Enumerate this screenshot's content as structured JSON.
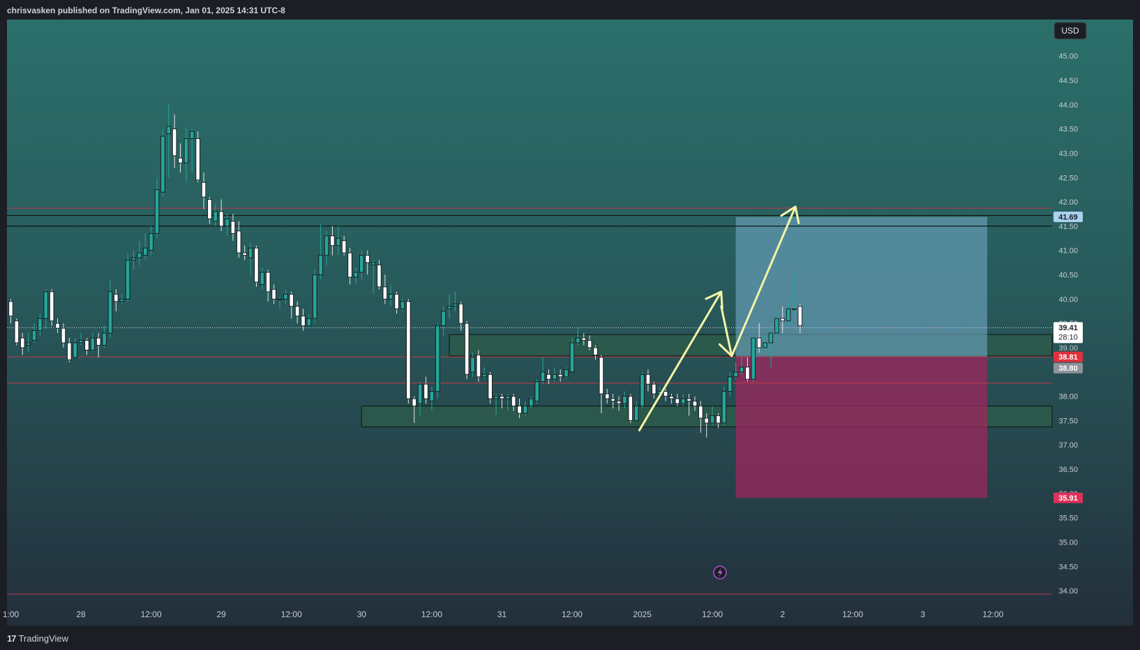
{
  "header": {
    "byline": "chrisvasken published on TradingView.com, Jan 01, 2025 14:31 UTC-8"
  },
  "footer": {
    "brand_logo": "17",
    "brand": "TradingView"
  },
  "currency_button": "USD",
  "colors": {
    "bull": "#26a69a",
    "bear": "#ffffff",
    "target_zone": "#6fa8c4",
    "stop_zone": "#a3245e",
    "support_zone": "#2d5a4a",
    "arrow": "#f5f5a8",
    "red_line": "#c0394a"
  },
  "icons": {
    "flash": "flash-icon",
    "logo": "tradingview-logo-icon"
  },
  "chart_data": {
    "type": "candlestick",
    "ylim": [
      33.8,
      45.75
    ],
    "y_ticks": [
      "45.00",
      "44.50",
      "44.00",
      "43.50",
      "43.00",
      "42.50",
      "42.00",
      "41.50",
      "41.00",
      "40.50",
      "40.00",
      "39.50",
      "39.00",
      "38.00",
      "37.50",
      "37.00",
      "36.50",
      "36.00",
      "35.50",
      "35.00",
      "34.50",
      "34.00"
    ],
    "x_ticks": [
      {
        "label": "1:00",
        "i": 0
      },
      {
        "label": "28",
        "i": 12
      },
      {
        "label": "12:00",
        "i": 24
      },
      {
        "label": "29",
        "i": 36
      },
      {
        "label": "12:00",
        "i": 48
      },
      {
        "label": "30",
        "i": 60
      },
      {
        "label": "12:00",
        "i": 72
      },
      {
        "label": "31",
        "i": 84
      },
      {
        "label": "12:00",
        "i": 96
      },
      {
        "label": "2025",
        "i": 108
      },
      {
        "label": "12:00",
        "i": 120
      },
      {
        "label": "2",
        "i": 132
      },
      {
        "label": "12:00",
        "i": 144
      },
      {
        "label": "3",
        "i": 156
      },
      {
        "label": "12:00",
        "i": 168
      }
    ],
    "price_tags": [
      {
        "value": "41.69",
        "price": 41.69,
        "bg": "#a9d2ef",
        "fg": "#1c1e26"
      },
      {
        "value": "39.41",
        "sub": "28:10",
        "price": 39.41,
        "bg": "#ffffff",
        "fg": "#1c1e26"
      },
      {
        "value": "38.81",
        "price": 38.81,
        "bg": "#e0303e",
        "fg": "#ffffff"
      },
      {
        "value": "38.80",
        "price": 38.58,
        "bg": "#8f939b",
        "fg": "#ffffff"
      },
      {
        "value": "35.91",
        "price": 35.91,
        "bg": "#e0305a",
        "fg": "#ffffff"
      }
    ],
    "levels": {
      "current_price": 39.41,
      "red_lines": [
        41.87,
        38.81,
        38.27,
        33.93
      ],
      "black_lines": [
        41.72,
        41.5
      ]
    },
    "zones": {
      "supply": {
        "from_i": 75,
        "to_i": 180,
        "top": 39.27,
        "bottom": 38.83
      },
      "support": {
        "from_i": 60,
        "to_i": 180,
        "top": 37.8,
        "bottom": 37.37
      },
      "target": {
        "from_i": 124,
        "to_i": 167,
        "top": 41.69,
        "bottom": 38.81
      },
      "stop": {
        "from_i": 124,
        "to_i": 167,
        "top": 38.81,
        "bottom": 35.91
      }
    },
    "arrows": [
      {
        "points": [
          [
            107.5,
            37.3
          ],
          [
            121.5,
            40.15
          ]
        ]
      },
      {
        "points": [
          [
            121.5,
            39.85
          ],
          [
            123.3,
            38.83
          ],
          [
            134.2,
            41.9
          ]
        ]
      }
    ],
    "candles": [
      [
        39.95,
        39.65,
        40.0,
        39.5
      ],
      [
        39.55,
        39.1,
        39.6,
        39.05
      ],
      [
        39.2,
        39.0,
        39.3,
        38.85
      ],
      [
        39.05,
        39.1,
        39.3,
        38.9
      ],
      [
        39.15,
        39.35,
        39.5,
        39.1
      ],
      [
        39.35,
        39.6,
        39.7,
        39.25
      ],
      [
        39.6,
        40.15,
        40.2,
        39.4
      ],
      [
        40.15,
        39.55,
        40.2,
        39.45
      ],
      [
        39.5,
        39.4,
        39.6,
        39.3
      ],
      [
        39.4,
        39.1,
        39.5,
        39.0
      ],
      [
        39.1,
        38.75,
        39.2,
        38.7
      ],
      [
        38.8,
        39.1,
        39.2,
        38.8
      ],
      [
        39.1,
        39.15,
        39.3,
        39.05
      ],
      [
        39.15,
        38.95,
        39.2,
        38.85
      ],
      [
        38.95,
        39.2,
        39.3,
        38.9
      ],
      [
        39.2,
        39.05,
        39.3,
        38.8
      ],
      [
        39.05,
        39.3,
        39.45,
        39.0
      ],
      [
        39.3,
        40.15,
        40.4,
        39.2
      ],
      [
        40.1,
        39.95,
        40.2,
        39.75
      ],
      [
        39.95,
        40.0,
        40.1,
        39.9
      ],
      [
        40.0,
        40.8,
        40.95,
        39.95
      ],
      [
        40.8,
        40.85,
        41.0,
        40.6
      ],
      [
        40.85,
        40.95,
        41.2,
        40.7
      ],
      [
        40.9,
        41.05,
        41.35,
        40.8
      ],
      [
        41.0,
        41.35,
        41.5,
        40.9
      ],
      [
        41.35,
        42.25,
        42.5,
        41.25
      ],
      [
        42.2,
        43.35,
        43.5,
        42.1
      ],
      [
        43.4,
        43.55,
        44.0,
        42.5
      ],
      [
        43.5,
        42.95,
        43.8,
        42.7
      ],
      [
        42.9,
        42.8,
        43.2,
        42.6
      ],
      [
        42.8,
        43.3,
        43.5,
        42.4
      ],
      [
        43.3,
        43.45,
        43.5,
        42.6
      ],
      [
        43.3,
        42.45,
        43.45,
        42.4
      ],
      [
        42.4,
        42.1,
        42.6,
        41.85
      ],
      [
        42.05,
        41.65,
        42.1,
        41.55
      ],
      [
        41.6,
        41.8,
        41.95,
        41.5
      ],
      [
        41.8,
        41.5,
        42.05,
        41.4
      ],
      [
        41.5,
        41.65,
        41.75,
        41.3
      ],
      [
        41.6,
        41.35,
        41.75,
        41.2
      ],
      [
        41.4,
        40.95,
        41.6,
        40.85
      ],
      [
        40.95,
        40.9,
        41.1,
        40.8
      ],
      [
        40.85,
        41.05,
        41.15,
        40.5
      ],
      [
        41.05,
        40.35,
        41.1,
        40.25
      ],
      [
        40.3,
        40.55,
        40.65,
        40.2
      ],
      [
        40.55,
        40.15,
        40.6,
        39.95
      ],
      [
        40.2,
        40.0,
        40.3,
        39.9
      ],
      [
        40.0,
        40.0,
        40.05,
        39.8
      ],
      [
        40.0,
        40.1,
        40.2,
        39.9
      ],
      [
        40.1,
        39.85,
        40.15,
        39.6
      ],
      [
        39.85,
        39.65,
        39.95,
        39.5
      ],
      [
        39.65,
        39.45,
        39.8,
        39.35
      ],
      [
        39.45,
        39.6,
        39.7,
        39.4
      ],
      [
        39.6,
        40.5,
        40.6,
        39.5
      ],
      [
        40.5,
        40.9,
        41.55,
        40.4
      ],
      [
        40.9,
        41.3,
        41.4,
        40.7
      ],
      [
        41.3,
        41.1,
        41.5,
        40.9
      ],
      [
        41.1,
        41.25,
        41.5,
        40.9
      ],
      [
        41.2,
        40.95,
        41.3,
        40.9
      ],
      [
        40.95,
        40.45,
        41.05,
        40.3
      ],
      [
        40.45,
        40.55,
        40.65,
        40.3
      ],
      [
        40.55,
        40.9,
        41.0,
        40.4
      ],
      [
        40.9,
        40.75,
        41.0,
        40.5
      ],
      [
        40.7,
        40.75,
        40.8,
        40.1
      ],
      [
        40.7,
        40.25,
        40.8,
        40.2
      ],
      [
        40.25,
        40.0,
        40.5,
        39.9
      ],
      [
        40.0,
        40.1,
        40.3,
        39.85
      ],
      [
        40.1,
        39.8,
        40.15,
        39.7
      ],
      [
        39.8,
        39.95,
        40.0,
        39.75
      ],
      [
        39.95,
        37.95,
        40.0,
        37.85
      ],
      [
        37.95,
        37.8,
        38.0,
        37.45
      ],
      [
        37.85,
        38.25,
        38.3,
        37.6
      ],
      [
        38.25,
        37.95,
        38.4,
        37.85
      ],
      [
        37.9,
        38.1,
        38.2,
        37.7
      ],
      [
        38.1,
        39.45,
        39.5,
        37.95
      ],
      [
        39.45,
        39.75,
        39.85,
        39.25
      ],
      [
        39.8,
        39.85,
        40.1,
        39.6
      ],
      [
        39.85,
        39.9,
        40.15,
        39.75
      ],
      [
        39.9,
        39.5,
        39.95,
        39.35
      ],
      [
        39.5,
        38.45,
        39.55,
        38.35
      ],
      [
        38.5,
        38.8,
        38.9,
        38.4
      ],
      [
        38.85,
        38.4,
        38.95,
        38.3
      ],
      [
        38.4,
        38.45,
        38.6,
        38.35
      ],
      [
        38.45,
        37.95,
        38.5,
        37.85
      ],
      [
        37.95,
        38.0,
        38.05,
        37.6
      ],
      [
        38.0,
        37.95,
        38.05,
        37.75
      ],
      [
        37.95,
        38.0,
        38.05,
        37.7
      ],
      [
        38.0,
        37.8,
        38.05,
        37.7
      ],
      [
        37.8,
        37.65,
        37.95,
        37.55
      ],
      [
        37.65,
        37.8,
        37.9,
        37.6
      ],
      [
        37.8,
        37.95,
        38.0,
        37.75
      ],
      [
        37.9,
        38.3,
        38.35,
        37.85
      ],
      [
        38.3,
        38.5,
        38.8,
        38.25
      ],
      [
        38.45,
        38.35,
        38.55,
        38.25
      ],
      [
        38.35,
        38.45,
        38.6,
        38.3
      ],
      [
        38.45,
        38.4,
        38.55,
        38.3
      ],
      [
        38.4,
        38.55,
        38.6,
        38.35
      ],
      [
        38.5,
        39.1,
        39.2,
        38.5
      ],
      [
        39.1,
        39.2,
        39.4,
        39.05
      ],
      [
        39.2,
        39.15,
        39.3,
        39.05
      ],
      [
        39.15,
        39.0,
        39.25,
        38.95
      ],
      [
        39.0,
        38.85,
        39.05,
        38.75
      ],
      [
        38.8,
        38.05,
        38.85,
        37.65
      ],
      [
        38.05,
        37.95,
        38.15,
        37.85
      ],
      [
        37.95,
        37.9,
        38.05,
        37.75
      ],
      [
        37.9,
        37.85,
        38.0,
        37.7
      ],
      [
        37.85,
        38.0,
        38.1,
        37.75
      ],
      [
        38.0,
        37.5,
        38.05,
        37.45
      ],
      [
        37.5,
        37.8,
        37.9,
        37.55
      ],
      [
        37.8,
        38.45,
        38.5,
        37.75
      ],
      [
        38.45,
        38.25,
        38.55,
        38.1
      ],
      [
        38.25,
        38.05,
        38.3,
        37.95
      ],
      [
        38.05,
        38.1,
        38.2,
        38.0
      ],
      [
        38.1,
        38.0,
        38.15,
        37.9
      ],
      [
        38.0,
        37.95,
        38.05,
        37.85
      ],
      [
        37.95,
        37.85,
        38.05,
        37.8
      ],
      [
        37.85,
        37.95,
        38.05,
        37.8
      ],
      [
        37.95,
        37.9,
        38.05,
        37.6
      ],
      [
        37.9,
        37.8,
        38.0,
        37.7
      ],
      [
        37.8,
        37.55,
        37.9,
        37.25
      ],
      [
        37.55,
        37.45,
        37.65,
        37.15
      ],
      [
        37.45,
        37.6,
        37.8,
        37.4
      ],
      [
        37.6,
        37.45,
        37.65,
        37.35
      ],
      [
        37.45,
        38.1,
        38.2,
        37.4
      ],
      [
        38.1,
        38.4,
        38.5,
        38.0
      ],
      [
        38.4,
        38.5,
        38.7,
        38.35
      ],
      [
        38.5,
        38.6,
        38.8,
        38.45
      ],
      [
        38.6,
        38.35,
        38.8,
        38.3
      ],
      [
        38.35,
        39.2,
        39.3,
        38.3
      ],
      [
        39.2,
        39.0,
        39.5,
        38.9
      ],
      [
        39.0,
        39.1,
        39.25,
        38.9
      ],
      [
        39.1,
        39.3,
        39.4,
        38.6
      ],
      [
        39.3,
        39.6,
        39.75,
        39.25
      ],
      [
        39.6,
        39.55,
        39.85,
        39.3
      ],
      [
        39.55,
        39.8,
        39.95,
        39.45
      ],
      [
        39.8,
        39.8,
        40.55,
        39.7
      ],
      [
        39.85,
        39.45,
        39.9,
        39.3
      ]
    ]
  }
}
